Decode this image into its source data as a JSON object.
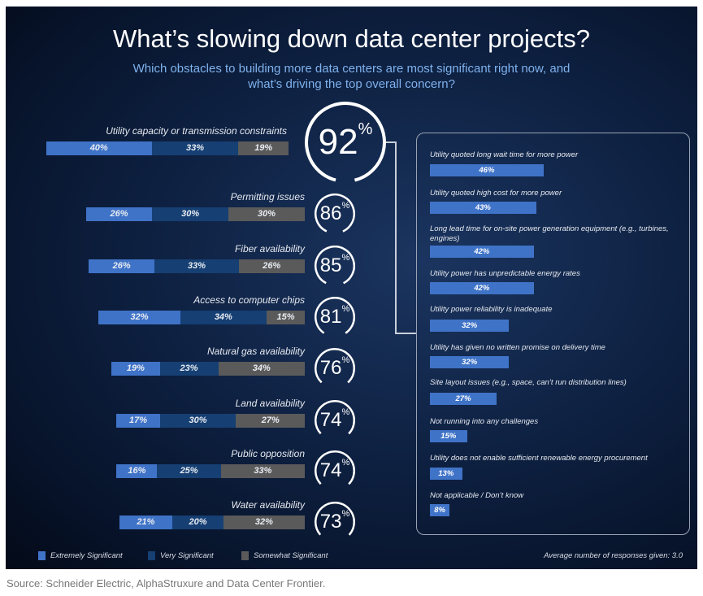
{
  "chart_data": {
    "type": "bar",
    "title": "What’s slowing down data center projects?",
    "subtitle": "Which obstacles to building more data centers are most significant right now, and what’s driving the top overall concern?",
    "legend": [
      "Extremely Significant",
      "Very Significant",
      "Somewhat Significant"
    ],
    "colors": {
      "extremely": "#3f73c7",
      "very": "#163f73",
      "somewhat": "#5a5a5a"
    },
    "obstacles": [
      {
        "label": "Utility capacity or transmission constraints",
        "total": 92,
        "values": [
          40,
          33,
          19
        ]
      },
      {
        "label": "Permitting issues",
        "total": 86,
        "values": [
          26,
          30,
          30
        ]
      },
      {
        "label": "Fiber availability",
        "total": 85,
        "values": [
          26,
          33,
          26
        ]
      },
      {
        "label": "Access to computer chips",
        "total": 81,
        "values": [
          32,
          34,
          15
        ]
      },
      {
        "label": "Natural gas availability",
        "total": 76,
        "values": [
          19,
          23,
          34
        ]
      },
      {
        "label": "Land availability",
        "total": 74,
        "values": [
          17,
          30,
          27
        ]
      },
      {
        "label": "Public opposition",
        "total": 74,
        "values": [
          16,
          25,
          33
        ]
      },
      {
        "label": "Water availability",
        "total": 73,
        "values": [
          21,
          20,
          32
        ]
      }
    ],
    "drivers": [
      {
        "label": "Utility quoted long wait time for more power",
        "value": 46
      },
      {
        "label": "Utility quoted high cost for more power",
        "value": 43
      },
      {
        "label": "Long lead time for on-site power generation equipment (e.g., turbines, engines)",
        "value": 42
      },
      {
        "label": "Utility power has unpredictable energy rates",
        "value": 42
      },
      {
        "label": "Utility power reliability is inadequate",
        "value": 32
      },
      {
        "label": "Utility has given no written promise on delivery time",
        "value": 32
      },
      {
        "label": "Site layout issues (e.g., space, can’t run distribution lines)",
        "value": 27
      },
      {
        "label": "Not running into any challenges",
        "value": 15
      },
      {
        "label": "Utility does not enable sufficient renewable energy procurement",
        "value": 13
      },
      {
        "label": "Not applicable / Don’t know",
        "value": 8
      }
    ],
    "average_note": "Average number of responses given: 3.0"
  },
  "source": "Source: Schneider Electric, AlphaStruxure and Data Center Frontier."
}
